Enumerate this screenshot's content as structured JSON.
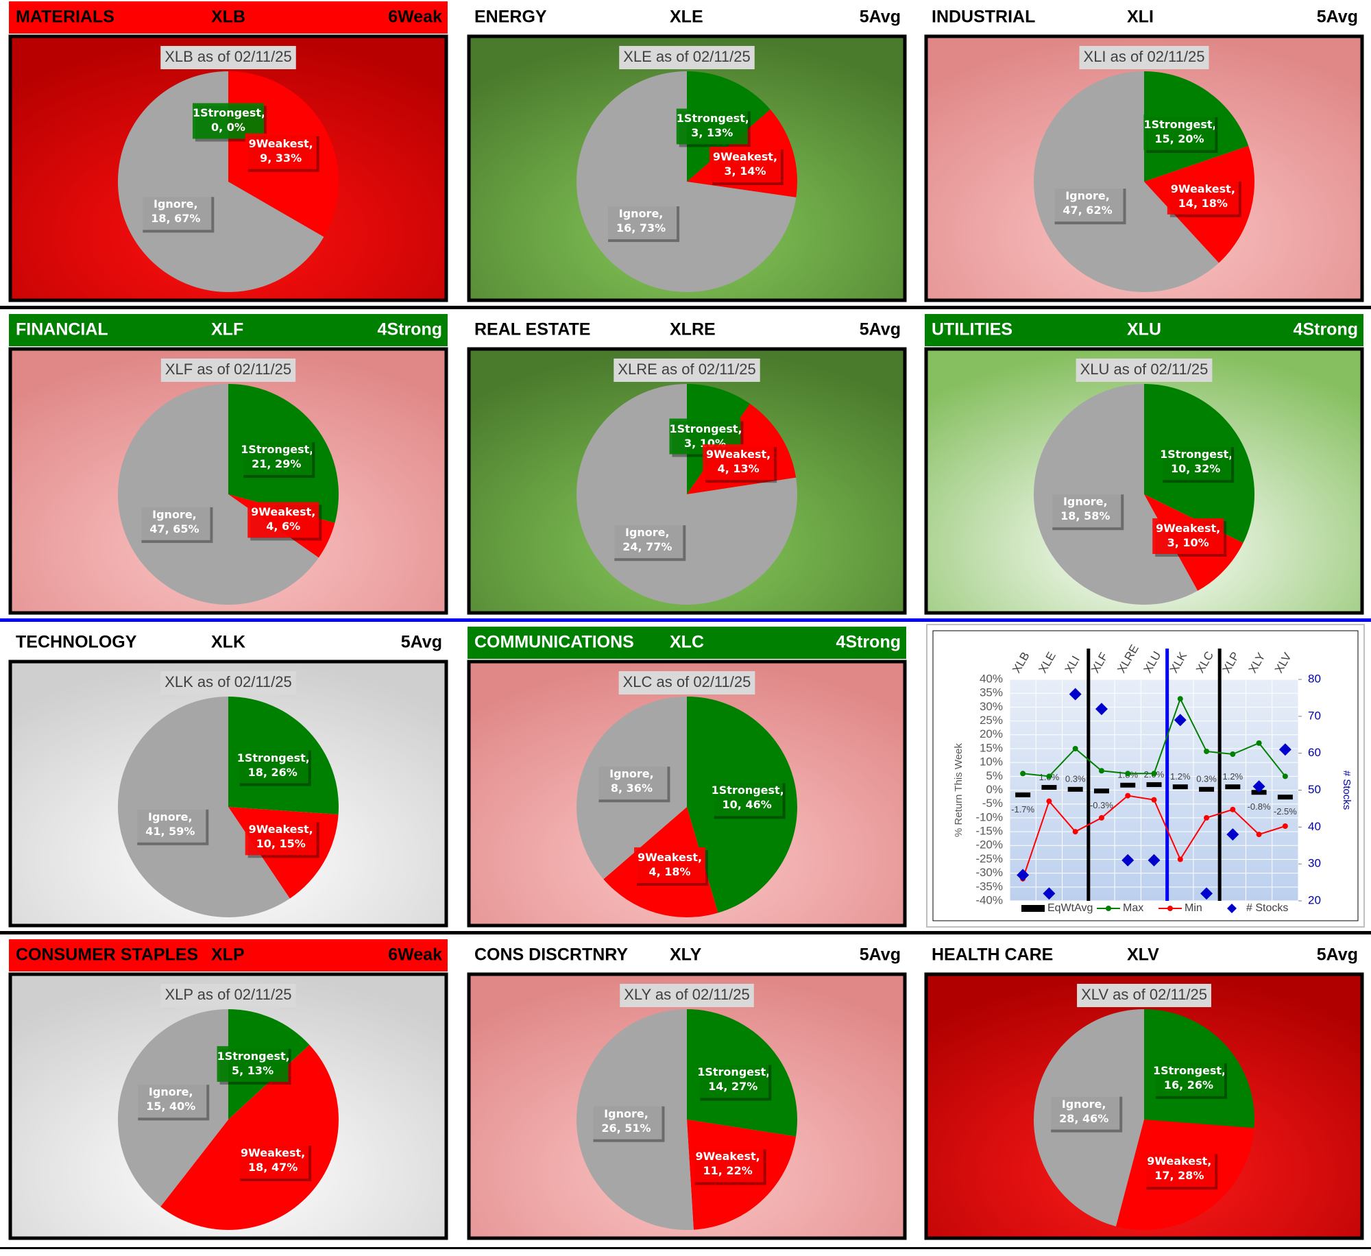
{
  "chart_data": [
    {
      "type": "pie",
      "header": {
        "sector": "MATERIALS",
        "ticker": "XLB",
        "rating": "6Weak",
        "color": "#ff0000",
        "text_color": "#000000"
      },
      "title": "XLB as of 02/11/25",
      "values": [
        0,
        9,
        18
      ],
      "value_labels": [
        "1Strongest,\n0, 0%",
        "9Weakest,\n9, 33%",
        "Ignore,\n18, 67%"
      ],
      "colors": [
        "#008000",
        "#ff0000",
        "#a6a6a6"
      ],
      "background": [
        "#ff1010",
        "#b80000"
      ]
    },
    {
      "type": "pie",
      "header": {
        "sector": "ENERGY",
        "ticker": "XLE",
        "rating": "5Avg",
        "color": "#ffffff",
        "text_color": "#000000"
      },
      "title": "XLE as of 02/11/25",
      "values": [
        3,
        3,
        16
      ],
      "value_labels": [
        "1Strongest,\n3, 13%",
        "9Weakest,\n3, 14%",
        "Ignore,\n16, 73%"
      ],
      "colors": [
        "#008000",
        "#ff0000",
        "#a6a6a6"
      ],
      "background": [
        "#86c85a",
        "#4a7a2c"
      ]
    },
    {
      "type": "pie",
      "header": {
        "sector": "INDUSTRIAL",
        "ticker": "XLI",
        "rating": "5Avg",
        "color": "#ffffff",
        "text_color": "#000000"
      },
      "title": "XLI as of 02/11/25",
      "values": [
        15,
        14,
        47
      ],
      "value_labels": [
        "1Strongest,\n15, 20%",
        "9Weakest,\n14, 18%",
        "Ignore,\n47, 62%"
      ],
      "colors": [
        "#008000",
        "#ff0000",
        "#a6a6a6"
      ],
      "background": [
        "#fbc4c4",
        "#e08888"
      ]
    },
    {
      "type": "pie",
      "header": {
        "sector": "FINANCIAL",
        "ticker": "XLF",
        "rating": "4Strong",
        "color": "#008000",
        "text_color": "#ffffff"
      },
      "title": "XLF as of 02/11/25",
      "values": [
        21,
        4,
        47
      ],
      "value_labels": [
        "1Strongest,\n21, 29%",
        "9Weakest,\n4, 6%",
        "Ignore,\n47, 65%"
      ],
      "colors": [
        "#008000",
        "#ff0000",
        "#a6a6a6"
      ],
      "background": [
        "#fbc4c4",
        "#e08888"
      ]
    },
    {
      "type": "pie",
      "header": {
        "sector": "REAL ESTATE",
        "ticker": "XLRE",
        "rating": "5Avg",
        "color": "#ffffff",
        "text_color": "#000000"
      },
      "title": "XLRE as of 02/11/25",
      "values": [
        3,
        4,
        24
      ],
      "value_labels": [
        "1Strongest,\n3, 10%",
        "9Weakest,\n4, 13%",
        "Ignore,\n24, 77%"
      ],
      "colors": [
        "#008000",
        "#ff0000",
        "#a6a6a6"
      ],
      "background": [
        "#86c85a",
        "#4a7a2c"
      ]
    },
    {
      "type": "pie",
      "header": {
        "sector": "UTILITIES",
        "ticker": "XLU",
        "rating": "4Strong",
        "color": "#008000",
        "text_color": "#ffffff"
      },
      "title": "XLU as of 02/11/25",
      "values": [
        10,
        3,
        18
      ],
      "value_labels": [
        "1Strongest,\n10, 32%",
        "9Weakest,\n3, 10%",
        "Ignore,\n18, 58%"
      ],
      "colors": [
        "#008000",
        "#ff0000",
        "#a6a6a6"
      ],
      "background": [
        "#ffffff",
        "#86bf60"
      ]
    },
    {
      "type": "pie",
      "header": {
        "sector": "TECHNOLOGY",
        "ticker": "XLK",
        "rating": "5Avg",
        "color": "#ffffff",
        "text_color": "#000000"
      },
      "title": "XLK as of 02/11/25",
      "values": [
        18,
        10,
        41
      ],
      "value_labels": [
        "1Strongest,\n18, 26%",
        "9Weakest,\n10, 15%",
        "Ignore,\n41, 59%"
      ],
      "colors": [
        "#008000",
        "#ff0000",
        "#a6a6a6"
      ],
      "background": [
        "#ffffff",
        "#cfcfcf"
      ]
    },
    {
      "type": "pie",
      "header": {
        "sector": "COMMUNICATIONS",
        "ticker": "XLC",
        "rating": "4Strong",
        "color": "#008000",
        "text_color": "#ffffff"
      },
      "title": "XLC as of 02/11/25",
      "values": [
        10,
        4,
        8
      ],
      "value_labels": [
        "1Strongest,\n10, 46%",
        "9Weakest,\n4, 18%",
        "Ignore,\n8, 36%"
      ],
      "colors": [
        "#008000",
        "#ff0000",
        "#a6a6a6"
      ],
      "background": [
        "#fbc4c4",
        "#e08888"
      ]
    },
    {
      "type": "combo",
      "categories": [
        "XLB",
        "XLE",
        "XLI",
        "XLF",
        "XLRE",
        "XLU",
        "XLK",
        "XLC",
        "XLP",
        "XLY",
        "XLV"
      ],
      "y_label": "% Return This Week",
      "y2_label": "# Stocks",
      "ylim": [
        -40,
        40
      ],
      "yticks": [
        {
          "value": -40,
          "label": "-40%"
        },
        {
          "value": -35,
          "label": "-35%"
        },
        {
          "value": -30,
          "label": "-30%"
        },
        {
          "value": -25,
          "label": "-25%"
        },
        {
          "value": -20,
          "label": "-20%"
        },
        {
          "value": -15,
          "label": "-15%"
        },
        {
          "value": -10,
          "label": "-10%"
        },
        {
          "value": -5,
          "label": "-5%"
        },
        {
          "value": 0,
          "label": "0%"
        },
        {
          "value": 5,
          "label": "5%"
        },
        {
          "value": 10,
          "label": "10%"
        },
        {
          "value": 15,
          "label": "15%"
        },
        {
          "value": 20,
          "label": "20%"
        },
        {
          "value": 25,
          "label": "25%"
        },
        {
          "value": 30,
          "label": "30%"
        },
        {
          "value": 35,
          "label": "35%"
        },
        {
          "value": 40,
          "label": "40%"
        }
      ],
      "y2lim": [
        20,
        80
      ],
      "y2ticks": [
        20,
        30,
        40,
        50,
        60,
        70,
        80
      ],
      "grid": true,
      "series": [
        {
          "name": "EqWtAvg",
          "type": "dash",
          "color": "#000000",
          "values": [
            -1.7,
            1.0,
            0.3,
            -0.3,
            1.8,
            2.0,
            1.2,
            0.3,
            1.2,
            -0.8,
            -2.5
          ],
          "value_labels": [
            "-1.7%",
            "1.0%",
            "0.3%",
            "-0.3%",
            "1.8%",
            "2.0%",
            "1.2%",
            "0.3%",
            "1.2%",
            "-0.8%",
            "-2.5%"
          ]
        },
        {
          "name": "Max",
          "type": "line",
          "color": "#008000",
          "values": [
            6,
            5,
            15,
            7,
            6,
            6,
            33,
            14,
            13,
            17,
            5
          ]
        },
        {
          "name": "Min",
          "type": "line",
          "color": "#ff0000",
          "values": [
            -32,
            -4,
            -15,
            -10,
            -2,
            -3.5,
            -25,
            -10,
            -7,
            -16,
            -13
          ]
        },
        {
          "name": "# Stocks",
          "type": "diamond",
          "color": "#0000cc",
          "axis": "y2",
          "values": [
            27,
            22,
            76,
            72,
            31,
            31,
            69,
            22,
            38,
            51,
            61
          ]
        }
      ]
    },
    {
      "type": "pie",
      "header": {
        "sector": "CONSUMER STAPLES",
        "ticker": "XLP",
        "rating": "6Weak",
        "color": "#ff0000",
        "text_color": "#000000"
      },
      "title": "XLP as of 02/11/25",
      "values": [
        5,
        18,
        15
      ],
      "value_labels": [
        "1Strongest,\n5, 13%",
        "9Weakest,\n18, 47%",
        "Ignore,\n15, 40%"
      ],
      "colors": [
        "#008000",
        "#ff0000",
        "#a6a6a6"
      ],
      "background": [
        "#ffffff",
        "#cfcfcf"
      ]
    },
    {
      "type": "pie",
      "header": {
        "sector": "CONS DISCRTNRY",
        "ticker": "XLY",
        "rating": "5Avg",
        "color": "#ffffff",
        "text_color": "#000000"
      },
      "title": "XLY as of 02/11/25",
      "values": [
        14,
        11,
        26
      ],
      "value_labels": [
        "1Strongest,\n14, 27%",
        "9Weakest,\n11, 22%",
        "Ignore,\n26, 51%"
      ],
      "colors": [
        "#008000",
        "#ff0000",
        "#a6a6a6"
      ],
      "background": [
        "#fbc4c4",
        "#e08888"
      ]
    },
    {
      "type": "pie",
      "header": {
        "sector": "HEALTH CARE",
        "ticker": "XLV",
        "rating": "5Avg",
        "color": "#ffffff",
        "text_color": "#000000"
      },
      "title": "XLV as of 02/11/25",
      "values": [
        16,
        17,
        28
      ],
      "value_labels": [
        "1Strongest,\n16, 26%",
        "9Weakest,\n17, 28%",
        "Ignore,\n28, 46%"
      ],
      "colors": [
        "#008000",
        "#ff0000",
        "#a6a6a6"
      ],
      "background": [
        "#ff1a1a",
        "#b00000"
      ]
    }
  ]
}
